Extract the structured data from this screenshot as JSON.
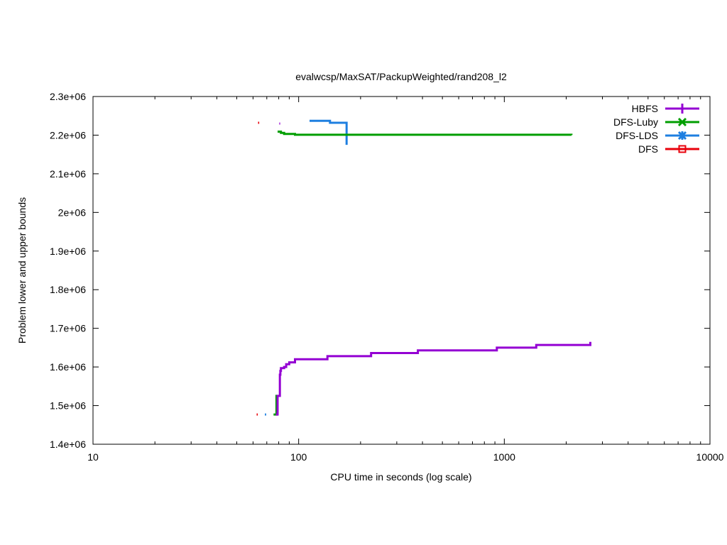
{
  "chart_data": {
    "type": "line",
    "title": "evalwcsp/MaxSAT/PackupWeighted/rand208_l2",
    "xlabel": "CPU time in seconds (log scale)",
    "ylabel": "Problem lower and upper bounds",
    "xscale": "log",
    "xlim": [
      10,
      10000
    ],
    "ylim": [
      1400000,
      2300000
    ],
    "x_ticks": [
      10,
      100,
      1000,
      10000
    ],
    "x_tick_labels": [
      "10",
      "100",
      "1000",
      "10000"
    ],
    "y_ticks": [
      1400000,
      1500000,
      1600000,
      1700000,
      1800000,
      1900000,
      2000000,
      2100000,
      2200000,
      2300000
    ],
    "y_tick_labels": [
      "1.4e+06",
      "1.5e+06",
      "1.6e+06",
      "1.7e+06",
      "1.8e+06",
      "1.9e+06",
      "2e+06",
      "2.1e+06",
      "2.2e+06",
      "2.3e+06"
    ],
    "grid": false,
    "legend_position": "top-right",
    "series": [
      {
        "name": "HBFS",
        "color": "#9400d3",
        "marker": "plus",
        "upper": [
          [
            80.5,
            2230000
          ],
          [
            81.3,
            2230000
          ]
        ],
        "lower": [
          [
            77.5,
            1477000
          ],
          [
            79,
            1477000
          ],
          [
            79,
            1525000
          ],
          [
            81,
            1525000
          ],
          [
            81,
            1580000
          ],
          [
            81.5,
            1590000
          ],
          [
            82,
            1597000
          ],
          [
            85,
            1600000
          ],
          [
            87,
            1607000
          ],
          [
            90,
            1612000
          ],
          [
            96,
            1620000
          ],
          [
            138,
            1628000
          ],
          [
            225,
            1636000
          ],
          [
            380,
            1643000
          ],
          [
            920,
            1650000
          ],
          [
            1430,
            1657000
          ],
          [
            2620,
            1665000
          ]
        ]
      },
      {
        "name": "DFS-Luby",
        "color": "#009e00",
        "marker": "cross",
        "upper": [
          [
            79,
            2209000
          ],
          [
            82,
            2206000
          ],
          [
            85,
            2203000
          ],
          [
            96,
            2201000
          ],
          [
            2120,
            2200000
          ]
        ],
        "lower": [
          [
            75.5,
            1477000
          ],
          [
            78,
            1477000
          ],
          [
            78,
            1525000
          ],
          [
            79,
            1525000
          ]
        ]
      },
      {
        "name": "DFS-LDS",
        "color": "#1e7fe0",
        "marker": "star",
        "upper": [
          [
            113,
            2237000
          ],
          [
            142,
            2237000
          ],
          [
            142,
            2232000
          ],
          [
            171,
            2232000
          ],
          [
            171,
            2175000
          ]
        ],
        "lower": [
          [
            68.5,
            1477000
          ],
          [
            69.5,
            1477000
          ]
        ]
      },
      {
        "name": "DFS",
        "color": "#e8000b",
        "marker": "square",
        "upper": [
          [
            63.5,
            2232000
          ],
          [
            64.3,
            2232000
          ]
        ],
        "lower": [
          [
            62.5,
            1477000
          ],
          [
            63.3,
            1477000
          ]
        ]
      }
    ]
  }
}
